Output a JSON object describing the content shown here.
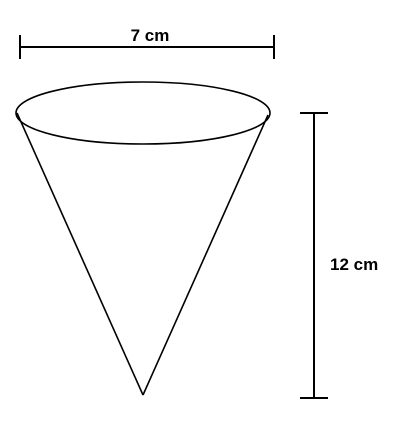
{
  "diagram": {
    "diameter_label": "7 cm",
    "height_label": "12 cm",
    "stroke_color": "#000000",
    "background_color": "#ffffff"
  }
}
